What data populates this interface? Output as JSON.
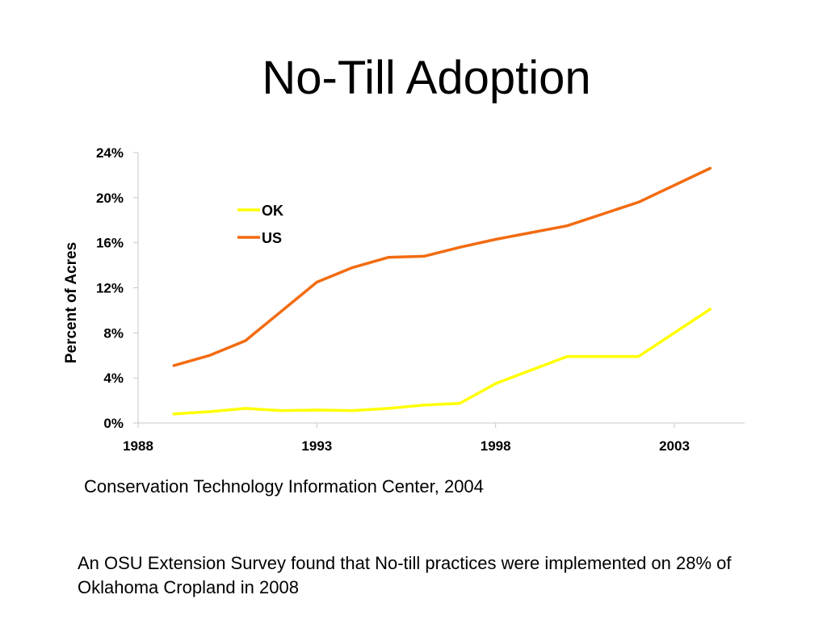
{
  "slide": {
    "title": "No-Till Adoption",
    "source": "Conservation Technology Information Center, 2004",
    "note": "An OSU Extension Survey found that No-till practices were implemented on 28% of Oklahoma Cropland in 2008"
  },
  "chart_data": {
    "type": "line",
    "title": "",
    "xlabel": "",
    "ylabel": "Percent of Acres",
    "xlim": [
      1988,
      2005
    ],
    "ylim": [
      0,
      24
    ],
    "x_ticks": [
      1988,
      1993,
      1998,
      2003
    ],
    "x_tick_labels": [
      "1988",
      "1993",
      "1998",
      "2003"
    ],
    "y_ticks": [
      0,
      4,
      8,
      12,
      16,
      20,
      24
    ],
    "y_tick_labels": [
      "0%",
      "4%",
      "8%",
      "12%",
      "16%",
      "20%",
      "24%"
    ],
    "legend": "upper-left",
    "grid": false,
    "x": [
      1989,
      1990,
      1991,
      1992,
      1993,
      1994,
      1995,
      1996,
      1997,
      1998,
      2000,
      2002,
      2004
    ],
    "series": [
      {
        "name": "OK",
        "color": "#FFFF00",
        "values": [
          0.8,
          1.0,
          1.3,
          1.1,
          1.15,
          1.1,
          1.3,
          1.6,
          1.75,
          3.5,
          5.9,
          5.9,
          10.1
        ]
      },
      {
        "name": "US",
        "color": "#F26B10",
        "values": [
          5.1,
          6.0,
          7.3,
          9.9,
          12.5,
          13.8,
          14.7,
          14.8,
          15.6,
          16.3,
          17.5,
          19.6,
          22.6
        ]
      }
    ]
  }
}
